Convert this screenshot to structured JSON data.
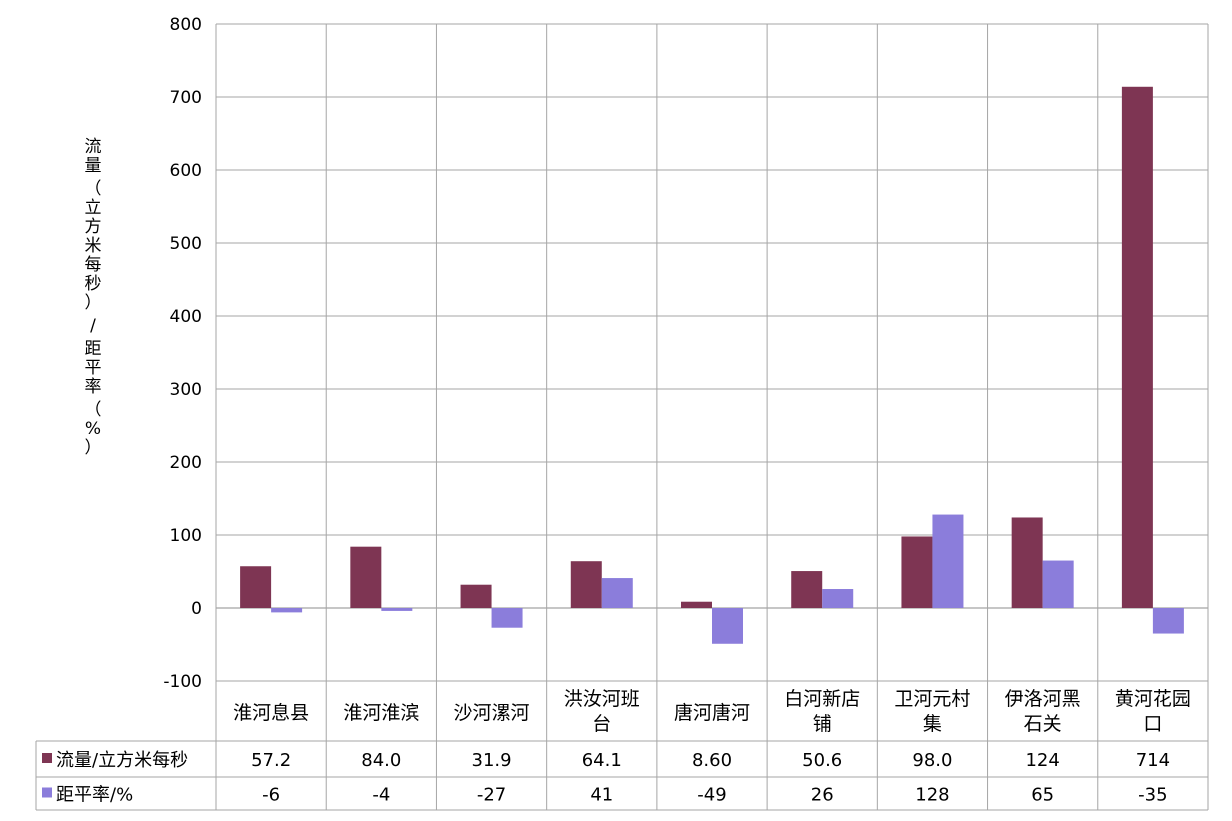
{
  "chart_data": {
    "type": "bar",
    "ylabel": [
      "流量",
      "（立方米每秒）",
      "/",
      "距平率",
      "（%）"
    ],
    "ylim": [
      -100,
      800
    ],
    "yticks": [
      -100,
      0,
      100,
      200,
      300,
      400,
      500,
      600,
      700,
      800
    ],
    "grid": true,
    "categories": [
      [
        "淮河息县"
      ],
      [
        "淮河淮滨"
      ],
      [
        "沙河漯河"
      ],
      [
        "洪汝河班",
        "台"
      ],
      [
        "唐河唐河"
      ],
      [
        "白河新店",
        "铺"
      ],
      [
        "卫河元村",
        "集"
      ],
      [
        "伊洛河黑",
        "石关"
      ],
      [
        "黄河花园",
        "口"
      ]
    ],
    "series": [
      {
        "name": "流量/立方米每秒",
        "color": "#7e3553",
        "values": [
          57.2,
          84.0,
          31.9,
          64.1,
          8.6,
          50.6,
          98.0,
          124,
          714
        ],
        "labels": [
          "57.2",
          "84.0",
          "31.9",
          "64.1",
          "8.60",
          "50.6",
          "98.0",
          "124",
          "714"
        ]
      },
      {
        "name": "距平率/%",
        "color": "#8b7ddb",
        "values": [
          -6,
          -4,
          -27,
          41,
          -49,
          26,
          128,
          65,
          -35
        ],
        "labels": [
          "-6",
          "-4",
          "-27",
          "41",
          "-49",
          "26",
          "128",
          "65",
          "-35"
        ]
      }
    ]
  }
}
